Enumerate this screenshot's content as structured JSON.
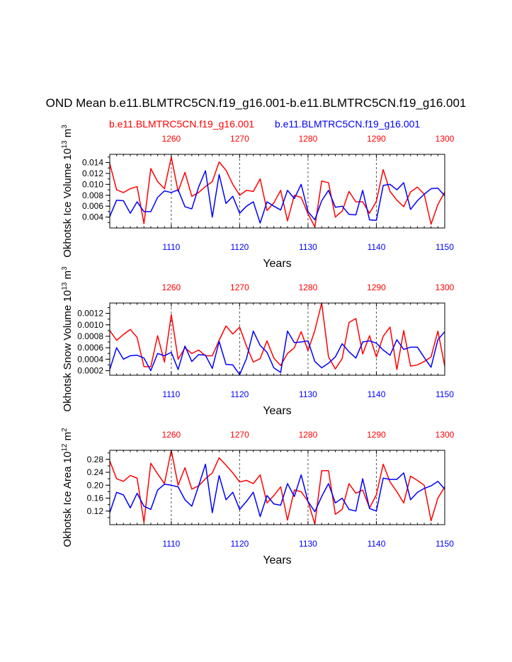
{
  "page": {
    "title": "OND Mean b.e11.BLMTRC5CN.f19_g16.001-b.e11.BLMTRC5CN.f19_g16.001",
    "legend": [
      {
        "label": "b.e11.BLMTRC5CN.f19_g16.001",
        "color": "#ff0000"
      },
      {
        "label": "b.e11.BLMTRC5CN.f19_g16.001",
        "color": "#0000ff"
      }
    ]
  },
  "chart_data": [
    {
      "type": "line",
      "title": "",
      "xlabel": "Years",
      "ylabel": "Okhotsk Ice Volume 10^13 m^3",
      "ylabel_parts": {
        "base": "Okhotsk Ice Volume 10",
        "exp1": "13",
        "mid": " m",
        "exp2": "3"
      },
      "ylim": [
        0.002,
        0.0155
      ],
      "yticks": [
        0.004,
        0.006,
        0.008,
        0.01,
        0.012,
        0.014
      ],
      "ytick_labels": [
        "0.004",
        "0.006",
        "0.008",
        "0.010",
        "0.012",
        "0.014"
      ],
      "bottom_axis": {
        "xlim": [
          1101,
          1150
        ],
        "ticks": [
          1110,
          1120,
          1130,
          1140,
          1150
        ],
        "color": "#0000ff"
      },
      "top_axis": {
        "xlim": [
          1251,
          1300
        ],
        "ticks": [
          1260,
          1270,
          1280,
          1290,
          1300
        ],
        "color": "#ff0000"
      },
      "vlines": [
        1110,
        1120,
        1130,
        1140
      ],
      "series": [
        {
          "name": "b.e11.BLMTRC5CN.f19_g16.001",
          "color": "#ff0000",
          "axis": "top",
          "values": [
            0.0138,
            0.009,
            0.0085,
            0.0092,
            0.0096,
            0.0028,
            0.0129,
            0.0105,
            0.0092,
            0.015,
            0.0087,
            0.0122,
            0.0078,
            0.0085,
            0.0096,
            0.0105,
            0.0141,
            0.0126,
            0.01,
            0.008,
            0.0089,
            0.0087,
            0.011,
            0.0052,
            0.0066,
            0.0089,
            0.0033,
            0.008,
            0.0076,
            0.0046,
            0.0022,
            0.0106,
            0.0103,
            0.004,
            0.0051,
            0.0087,
            0.0068,
            0.0068,
            0.0047,
            0.0069,
            0.0127,
            0.0087,
            0.0071,
            0.0059,
            0.0086,
            0.0095,
            0.0082,
            0.0027,
            0.0063,
            0.0086
          ]
        },
        {
          "name": "b.e11.BLMTRC5CN.f19_g16.001",
          "color": "#0000ff",
          "axis": "bottom",
          "values": [
            0.0041,
            0.0071,
            0.007,
            0.0047,
            0.0068,
            0.005,
            0.005,
            0.0076,
            0.0088,
            0.0085,
            0.009,
            0.0059,
            0.0055,
            0.0095,
            0.0125,
            0.004,
            0.0118,
            0.0065,
            0.0078,
            0.0047,
            0.006,
            0.0068,
            0.0029,
            0.0068,
            0.006,
            0.0053,
            0.0089,
            0.0074,
            0.01,
            0.005,
            0.0035,
            0.007,
            0.0089,
            0.0058,
            0.006,
            0.0045,
            0.0044,
            0.0089,
            0.0035,
            0.0034,
            0.0098,
            0.01,
            0.009,
            0.0103,
            0.0054,
            0.007,
            0.0082,
            0.0092,
            0.0093,
            0.0079
          ]
        }
      ]
    },
    {
      "type": "line",
      "title": "",
      "xlabel": "Years",
      "ylabel": "Okhotsk Snow Volume 10^13 m^3",
      "ylabel_parts": {
        "base": "Okhotsk Snow Volume 10",
        "exp1": "13",
        "mid": " m",
        "exp2": "3"
      },
      "ylim": [
        0.00012,
        0.00138
      ],
      "yticks": [
        0.0002,
        0.0004,
        0.0006,
        0.0008,
        0.001,
        0.0012
      ],
      "ytick_labels": [
        "0.0002",
        "0.0004",
        "0.0006",
        "0.0008",
        "0.0010",
        "0.0012"
      ],
      "bottom_axis": {
        "xlim": [
          1101,
          1150
        ],
        "ticks": [
          1110,
          1120,
          1130,
          1140,
          1150
        ],
        "color": "#0000ff"
      },
      "top_axis": {
        "xlim": [
          1251,
          1300
        ],
        "ticks": [
          1260,
          1270,
          1280,
          1290,
          1300
        ],
        "color": "#ff0000"
      },
      "vlines": [
        1110,
        1120,
        1130,
        1140
      ],
      "series": [
        {
          "name": "b.e11.BLMTRC5CN.f19_g16.001",
          "color": "#ff0000",
          "axis": "top",
          "values": [
            0.0009,
            0.00073,
            0.00083,
            0.00092,
            0.00078,
            0.00027,
            0.00027,
            0.00081,
            0.00035,
            0.00118,
            0.0004,
            0.0006,
            0.0005,
            0.00056,
            0.00046,
            0.00046,
            0.00073,
            0.00098,
            0.00084,
            0.00096,
            0.00063,
            0.00035,
            0.00041,
            0.00072,
            0.00042,
            0.00029,
            0.0005,
            0.0006,
            0.00088,
            0.00055,
            0.0009,
            0.00138,
            0.00044,
            0.00023,
            0.00041,
            0.00104,
            0.00111,
            0.00049,
            0.00081,
            0.00044,
            0.0008,
            0.00096,
            0.00022,
            0.0009,
            0.00028,
            0.0003,
            0.00036,
            0.00044,
            0.00089,
            0.00028
          ]
        },
        {
          "name": "b.e11.BLMTRC5CN.f19_g16.001",
          "color": "#0000ff",
          "axis": "bottom",
          "values": [
            0.00022,
            0.0006,
            0.0004,
            0.00046,
            0.00047,
            0.00042,
            0.0002,
            0.0005,
            0.00046,
            0.00052,
            0.00022,
            0.00063,
            0.00036,
            0.00048,
            0.00047,
            0.00024,
            0.00071,
            0.00031,
            0.0003,
            0.00013,
            0.00041,
            0.00089,
            0.00064,
            0.00052,
            0.00025,
            0.00017,
            0.00089,
            0.00069,
            0.0007,
            0.00072,
            0.00036,
            0.00025,
            0.00033,
            0.00044,
            0.00067,
            0.00053,
            0.00042,
            0.0007,
            0.00072,
            0.00068,
            0.00056,
            0.00047,
            0.00074,
            0.00057,
            0.00061,
            0.00061,
            0.00043,
            0.00026,
            0.00074,
            0.00088
          ]
        }
      ]
    },
    {
      "type": "line",
      "title": "",
      "xlabel": "Years",
      "ylabel": "Okhotsk Ice Area 10^12 m^2",
      "ylabel_parts": {
        "base": "Okhotsk Ice Area 10",
        "exp1": "12",
        "mid": " m",
        "exp2": "2"
      },
      "ylim": [
        0.078,
        0.308
      ],
      "yticks": [
        0.12,
        0.16,
        0.2,
        0.24,
        0.28
      ],
      "ytick_labels": [
        "0.12",
        "0.16",
        "0.20",
        "0.24",
        "0.28"
      ],
      "bottom_axis": {
        "xlim": [
          1101,
          1150
        ],
        "ticks": [
          1110,
          1120,
          1130,
          1140,
          1150
        ],
        "color": "#0000ff"
      },
      "top_axis": {
        "xlim": [
          1251,
          1300
        ],
        "ticks": [
          1260,
          1270,
          1280,
          1290,
          1300
        ],
        "color": "#ff0000"
      },
      "vlines": [
        1110,
        1120,
        1130,
        1140
      ],
      "series": [
        {
          "name": "b.e11.BLMTRC5CN.f19_g16.001",
          "color": "#ff0000",
          "axis": "top",
          "values": [
            0.275,
            0.22,
            0.212,
            0.23,
            0.222,
            0.085,
            0.268,
            0.235,
            0.205,
            0.308,
            0.2,
            0.254,
            0.188,
            0.198,
            0.22,
            0.238,
            0.285,
            0.262,
            0.238,
            0.21,
            0.215,
            0.205,
            0.232,
            0.145,
            0.168,
            0.195,
            0.092,
            0.185,
            0.18,
            0.15,
            0.08,
            0.245,
            0.245,
            0.11,
            0.125,
            0.205,
            0.175,
            0.185,
            0.13,
            0.17,
            0.265,
            0.21,
            0.18,
            0.145,
            0.228,
            0.215,
            0.2,
            0.09,
            0.16,
            0.195
          ]
        },
        {
          "name": "b.e11.BLMTRC5CN.f19_g16.001",
          "color": "#0000ff",
          "axis": "bottom",
          "values": [
            0.115,
            0.178,
            0.17,
            0.13,
            0.175,
            0.135,
            0.125,
            0.185,
            0.203,
            0.2,
            0.195,
            0.155,
            0.135,
            0.198,
            0.265,
            0.115,
            0.23,
            0.155,
            0.178,
            0.125,
            0.15,
            0.178,
            0.103,
            0.168,
            0.142,
            0.138,
            0.205,
            0.165,
            0.232,
            0.15,
            0.118,
            0.165,
            0.205,
            0.145,
            0.16,
            0.125,
            0.12,
            0.22,
            0.128,
            0.12,
            0.222,
            0.218,
            0.218,
            0.238,
            0.155,
            0.178,
            0.19,
            0.198,
            0.212,
            0.188
          ]
        }
      ]
    }
  ]
}
